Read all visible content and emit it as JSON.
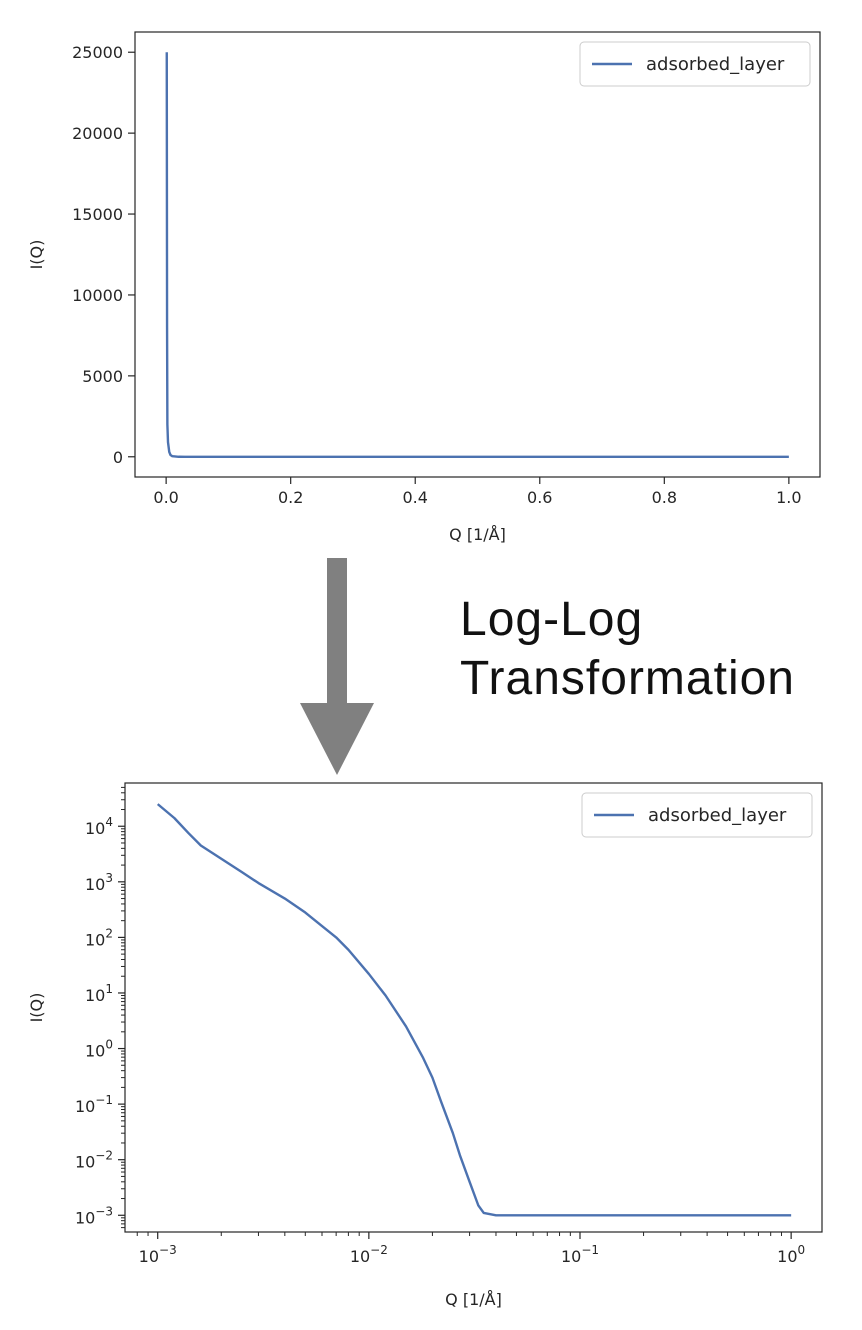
{
  "annotation": {
    "line1": "Log-Log",
    "line2": "Transformation"
  },
  "colors": {
    "series": "#4c72b0",
    "arrow": "#808080",
    "axes": "#262626"
  },
  "chart_data": [
    {
      "type": "line",
      "title": "",
      "xlabel": "Q [1/Å]",
      "ylabel": "I(Q)",
      "xscale": "linear",
      "yscale": "linear",
      "xlim": [
        -0.05,
        1.05
      ],
      "ylim": [
        -1250,
        26250
      ],
      "xticks": [
        0.0,
        0.2,
        0.4,
        0.6,
        0.8,
        1.0
      ],
      "xtick_labels": [
        "0.0",
        "0.2",
        "0.4",
        "0.6",
        "0.8",
        "1.0"
      ],
      "yticks": [
        0,
        5000,
        10000,
        15000,
        20000,
        25000
      ],
      "ytick_labels": [
        "0",
        "5000",
        "10000",
        "15000",
        "20000",
        "25000"
      ],
      "legend": "top-right",
      "grid": false,
      "series": [
        {
          "name": "adsorbed_layer",
          "x": [
            0.001,
            0.0015,
            0.002,
            0.003,
            0.005,
            0.007,
            0.01,
            0.02,
            0.03,
            0.05,
            0.1,
            0.2,
            0.4,
            0.6,
            0.8,
            1.0
          ],
          "y": [
            25000,
            8000,
            2000,
            900,
            300,
            110,
            35,
            1,
            0.01,
            0.001,
            0.001,
            0.001,
            0.001,
            0.001,
            0.001,
            0.001
          ]
        }
      ]
    },
    {
      "type": "line",
      "title": "",
      "xlabel": "Q [1/Å]",
      "ylabel": "I(Q)",
      "xscale": "log",
      "yscale": "log",
      "xlim": [
        0.0007,
        1.4
      ],
      "ylim": [
        0.0005,
        60000
      ],
      "xticks": [
        0.001,
        0.01,
        0.1,
        1
      ],
      "xtick_labels": [
        {
          "base": "10",
          "exp": "−3"
        },
        {
          "base": "10",
          "exp": "−2"
        },
        {
          "base": "10",
          "exp": "−1"
        },
        {
          "base": "10",
          "exp": "0"
        }
      ],
      "yticks": [
        0.001,
        0.01,
        0.1,
        1,
        10,
        100,
        1000,
        10000
      ],
      "ytick_labels": [
        {
          "base": "10",
          "exp": "−3"
        },
        {
          "base": "10",
          "exp": "−2"
        },
        {
          "base": "10",
          "exp": "−1"
        },
        {
          "base": "10",
          "exp": "0"
        },
        {
          "base": "10",
          "exp": "1"
        },
        {
          "base": "10",
          "exp": "2"
        },
        {
          "base": "10",
          "exp": "3"
        },
        {
          "base": "10",
          "exp": "4"
        }
      ],
      "legend": "top-right",
      "grid": false,
      "series": [
        {
          "name": "adsorbed_layer",
          "x": [
            0.001,
            0.0012,
            0.0014,
            0.0016,
            0.002,
            0.0025,
            0.003,
            0.004,
            0.005,
            0.006,
            0.007,
            0.008,
            0.01,
            0.012,
            0.015,
            0.018,
            0.02,
            0.022,
            0.025,
            0.027,
            0.03,
            0.033,
            0.035,
            0.04,
            0.05,
            0.1,
            0.3,
            1.0
          ],
          "y": [
            25000,
            14000,
            7500,
            4500,
            2600,
            1500,
            950,
            500,
            280,
            160,
            100,
            60,
            22,
            9,
            2.5,
            0.7,
            0.3,
            0.11,
            0.03,
            0.012,
            0.004,
            0.0015,
            0.0011,
            0.001,
            0.001,
            0.001,
            0.001,
            0.001
          ]
        }
      ]
    }
  ]
}
